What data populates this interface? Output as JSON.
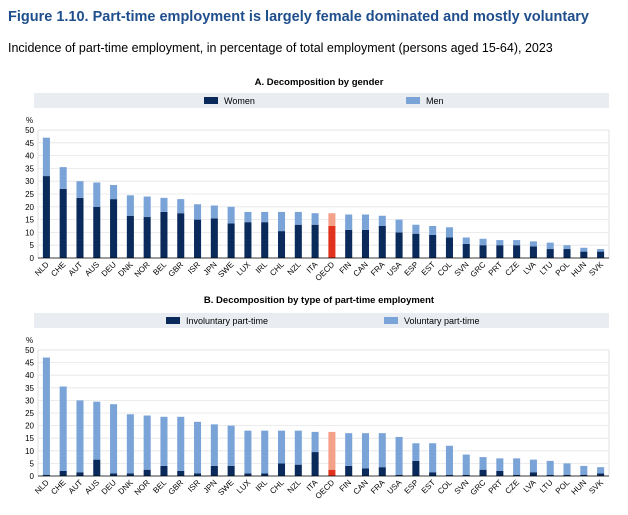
{
  "figure": {
    "title": "Figure 1.10. Part-time employment is largely female dominated and mostly voluntary",
    "subtitle": "Incidence of part-time employment, in percentage of total employment (persons aged 15-64), 2023"
  },
  "colors": {
    "dark": "#0a2a5c",
    "light": "#7aa4d8",
    "highlight_dark": "#e0321c",
    "highlight_light": "#f5a18a",
    "grid": "#e5e5e5",
    "panel_bg": "#e9edf2"
  },
  "chart_data": [
    {
      "type": "bar",
      "stacked": true,
      "title": "A. Decomposition by gender",
      "ylabel": "%",
      "ylim": [
        0,
        50
      ],
      "yticks": [
        0,
        5,
        10,
        15,
        20,
        25,
        30,
        35,
        40,
        45,
        50
      ],
      "grid": true,
      "legend": "top",
      "highlight": "OECD",
      "categories": [
        "NLD",
        "CHE",
        "AUT",
        "AUS",
        "DEU",
        "DNK",
        "NOR",
        "BEL",
        "GBR",
        "ISR",
        "JPN",
        "SWE",
        "LUX",
        "IRL",
        "CHL",
        "NZL",
        "ITA",
        "OECD",
        "FIN",
        "CAN",
        "FRA",
        "USA",
        "ESP",
        "EST",
        "COL",
        "SVN",
        "GRC",
        "PRT",
        "CZE",
        "LVA",
        "LTU",
        "POL",
        "HUN",
        "SVK"
      ],
      "series": [
        {
          "name": "Women",
          "color": "#0a2a5c",
          "values": [
            32,
            27,
            23.5,
            20,
            23,
            16.5,
            16,
            18,
            17.5,
            15,
            15.5,
            13.5,
            14,
            14,
            10.5,
            13,
            13,
            12.5,
            11,
            11,
            12.5,
            10,
            9.5,
            9,
            8,
            5.5,
            5,
            5,
            5,
            4.5,
            3.5,
            3.5,
            2.5,
            2.5
          ]
        },
        {
          "name": "Men",
          "color": "#7aa4d8",
          "values": [
            15,
            8.5,
            6.5,
            9.5,
            5.5,
            8,
            8,
            5.5,
            5.5,
            6,
            5,
            6.5,
            4,
            4,
            7.5,
            5,
            4.5,
            5,
            6,
            6,
            4,
            5,
            3.5,
            3.5,
            4,
            2.5,
            2.5,
            2,
            2,
            2,
            2.5,
            1.5,
            1.5,
            1
          ]
        }
      ]
    },
    {
      "type": "bar",
      "stacked": true,
      "title": "B. Decomposition by type of part-time employment",
      "ylabel": "%",
      "ylim": [
        0,
        50
      ],
      "yticks": [
        0,
        5,
        10,
        15,
        20,
        25,
        30,
        35,
        40,
        45,
        50
      ],
      "grid": true,
      "legend": "top",
      "highlight": "OECD",
      "categories": [
        "NLD",
        "CHE",
        "AUT",
        "AUS",
        "DEU",
        "DNK",
        "NOR",
        "BEL",
        "GBR",
        "ISR",
        "JPN",
        "SWE",
        "LUX",
        "IRL",
        "CHL",
        "NZL",
        "ITA",
        "OECD",
        "FIN",
        "CAN",
        "FRA",
        "USA",
        "ESP",
        "EST",
        "COL",
        "SVN",
        "GRC",
        "PRT",
        "CZE",
        "LVA",
        "LTU",
        "POL",
        "HUN",
        "SVK"
      ],
      "series": [
        {
          "name": "Involuntary part-time",
          "color": "#0a2a5c",
          "values": [
            0.5,
            2,
            1.5,
            6.5,
            1,
            1,
            2.5,
            4,
            2,
            1,
            4,
            4,
            1,
            1,
            5,
            4.5,
            9.5,
            2.5,
            4,
            3,
            3.5,
            0.5,
            6,
            1.5,
            0.5,
            0.5,
            2.5,
            2,
            0.5,
            1.5,
            0.5,
            0.5,
            0.5,
            1
          ]
        },
        {
          "name": "Voluntary part-time",
          "color": "#7aa4d8",
          "values": [
            46.5,
            33.5,
            28.5,
            23,
            27.5,
            23.5,
            21.5,
            19.5,
            21.5,
            20.5,
            16.5,
            16,
            17,
            17,
            13,
            13.5,
            8,
            15,
            13,
            14,
            13.5,
            15,
            7,
            11.5,
            11.5,
            8,
            5,
            5,
            6.5,
            5,
            5.5,
            4.5,
            3.5,
            2.5
          ]
        }
      ]
    }
  ]
}
